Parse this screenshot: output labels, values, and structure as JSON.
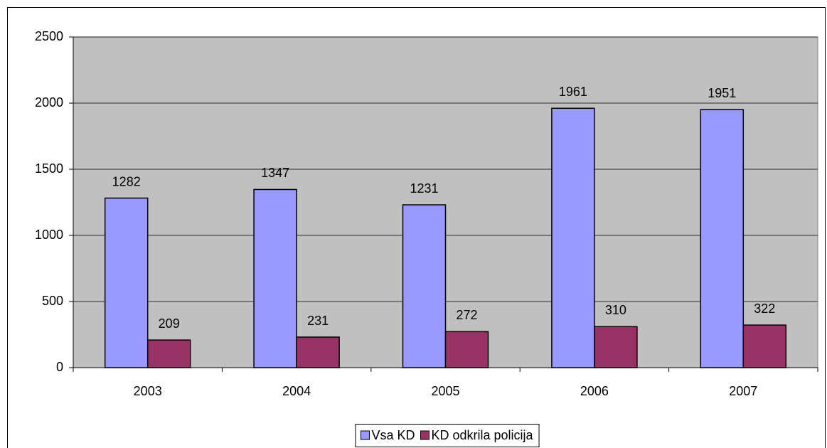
{
  "chart_data": {
    "type": "bar",
    "categories": [
      "2003",
      "2004",
      "2005",
      "2006",
      "2007"
    ],
    "series": [
      {
        "name": "Vsa KD",
        "color": "#9999ff",
        "values": [
          1282,
          1347,
          1231,
          1961,
          1951
        ]
      },
      {
        "name": "KD odkrila policija",
        "color": "#993366",
        "values": [
          209,
          231,
          272,
          310,
          322
        ]
      }
    ],
    "ylim": [
      0,
      2500
    ],
    "yticks": [
      0,
      500,
      1000,
      1500,
      2000,
      2500
    ],
    "grid": true,
    "plot_background": "#c0c0c0",
    "legend": "bottom"
  }
}
